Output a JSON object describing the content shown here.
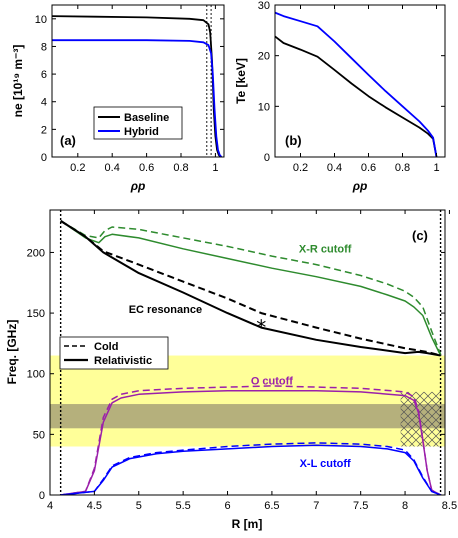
{
  "chart_data": [
    {
      "id": "a",
      "type": "line",
      "panel_label": "(a)",
      "xlabel": "ρp",
      "ylabel": "ne [10¹⁹ m⁻³]",
      "xlim": [
        0.05,
        1.05
      ],
      "ylim": [
        0,
        11
      ],
      "xticks": [
        0.2,
        0.4,
        0.6,
        0.8,
        1
      ],
      "xtick_labels": [
        "0.2",
        "0.4",
        "0.6",
        "0.8",
        "1"
      ],
      "yticks": [
        0,
        2,
        4,
        6,
        8,
        10
      ],
      "ytick_labels": [
        "0",
        "2",
        "4",
        "6",
        "8",
        "10"
      ],
      "legend": [
        "Baseline",
        "Hybrid"
      ],
      "legend_position": "bottom-center",
      "vertical_lines": [
        0.95,
        0.975
      ],
      "series": [
        {
          "name": "Baseline",
          "color": "#000000",
          "x": [
            0.05,
            0.3,
            0.6,
            0.85,
            0.93,
            0.96,
            0.97,
            0.98,
            0.985,
            0.99,
            1.0,
            1.01,
            1.02,
            1.03
          ],
          "y": [
            10.2,
            10.15,
            10.1,
            10.0,
            9.9,
            9.6,
            9.0,
            7.0,
            5.5,
            3.5,
            1.5,
            0.5,
            0.15,
            0.0
          ]
        },
        {
          "name": "Hybrid",
          "color": "#0000ff",
          "x": [
            0.05,
            0.3,
            0.6,
            0.85,
            0.93,
            0.96,
            0.975,
            0.985,
            0.995,
            1.005,
            1.015,
            1.025,
            1.035
          ],
          "y": [
            8.45,
            8.45,
            8.45,
            8.4,
            8.3,
            8.1,
            7.5,
            6.0,
            3.5,
            1.5,
            0.5,
            0.15,
            0.0
          ]
        }
      ]
    },
    {
      "id": "b",
      "type": "line",
      "panel_label": "(b)",
      "xlabel": "ρp",
      "ylabel": "Te [keV]",
      "xlim": [
        0.05,
        1.05
      ],
      "ylim": [
        0,
        30
      ],
      "xticks": [
        0.2,
        0.4,
        0.6,
        0.8,
        1
      ],
      "xtick_labels": [
        "0.2",
        "0.4",
        "0.6",
        "0.8",
        "1"
      ],
      "yticks": [
        0,
        10,
        20,
        30
      ],
      "ytick_labels": [
        "0",
        "10",
        "20",
        "30"
      ],
      "series": [
        {
          "color": "#000000",
          "x": [
            0.05,
            0.1,
            0.2,
            0.3,
            0.4,
            0.5,
            0.6,
            0.7,
            0.8,
            0.9,
            0.95,
            0.98,
            1.0
          ],
          "y": [
            23.8,
            22.5,
            21.2,
            19.8,
            17.2,
            14.5,
            12.0,
            9.8,
            7.8,
            5.8,
            4.6,
            3.6,
            0.0
          ]
        },
        {
          "color": "#0000ff",
          "x": [
            0.05,
            0.1,
            0.2,
            0.3,
            0.4,
            0.5,
            0.6,
            0.7,
            0.8,
            0.9,
            0.95,
            0.98,
            1.0
          ],
          "y": [
            28.5,
            27.8,
            26.8,
            25.8,
            22.8,
            19.5,
            16.2,
            13.0,
            10.0,
            7.0,
            5.2,
            3.8,
            0.0
          ]
        }
      ]
    },
    {
      "id": "c",
      "type": "line",
      "panel_label": "(c)",
      "xlabel": "R [m]",
      "ylabel": "Freq. [GHz]",
      "xlim": [
        4,
        8.45
      ],
      "ylim": [
        0,
        235
      ],
      "xticks": [
        4,
        4.5,
        5,
        5.5,
        6,
        6.5,
        7,
        7.5,
        8,
        8.5
      ],
      "xtick_labels": [
        "4",
        "4.5",
        "5",
        "5.5",
        "6",
        "6.5",
        "7",
        "7.5",
        "8",
        "8.5"
      ],
      "yticks": [
        0,
        50,
        100,
        150,
        200
      ],
      "ytick_labels": [
        "0",
        "50",
        "100",
        "150",
        "200"
      ],
      "legend": [
        "Cold",
        "Relativistic"
      ],
      "legend_position": "middle-left",
      "vertical_lines": [
        4.12,
        8.4
      ],
      "bands": [
        {
          "y0": 40,
          "y1": 115,
          "color": "#ffff99"
        },
        {
          "y0": 55,
          "y1": 75,
          "color": "#b5b07c"
        }
      ],
      "hatch_region": {
        "x0": 7.95,
        "x1": 8.4,
        "y0": 40,
        "y1": 85
      },
      "marker": {
        "x": 6.38,
        "y": 138,
        "symbol": "*"
      },
      "annotations": [
        {
          "text": "X-R cutoff",
          "x": 7.1,
          "y": 200,
          "color": "#2e8b2e"
        },
        {
          "text": "EC resonance",
          "x": 5.3,
          "y": 150,
          "color": "#000000"
        },
        {
          "text": "O cutoff",
          "x": 6.5,
          "y": 91,
          "color": "#9b1faa"
        },
        {
          "text": "X-L cutoff",
          "x": 7.1,
          "y": 23,
          "color": "#0000ff"
        }
      ],
      "series": [
        {
          "name": "X-R cutoff (relativistic)",
          "color": "#2e8b2e",
          "dash": false,
          "x": [
            4.12,
            4.4,
            4.55,
            4.62,
            4.7,
            5.0,
            5.5,
            6.0,
            6.5,
            7.0,
            7.5,
            7.8,
            8.0,
            8.1,
            8.2,
            8.3,
            8.4
          ],
          "y": [
            226,
            212,
            208,
            213,
            215,
            212,
            203,
            195,
            187,
            180,
            172,
            165,
            160,
            155,
            148,
            130,
            115
          ]
        },
        {
          "name": "X-R cutoff (cold)",
          "color": "#2e8b2e",
          "dash": true,
          "x": [
            4.12,
            4.4,
            4.55,
            4.62,
            4.7,
            5.0,
            5.5,
            6.0,
            6.5,
            7.0,
            7.5,
            7.8,
            8.0,
            8.1,
            8.2,
            8.3,
            8.4
          ],
          "y": [
            226,
            214,
            212,
            218,
            221,
            219,
            212,
            205,
            197,
            190,
            181,
            174,
            168,
            163,
            155,
            135,
            116
          ]
        },
        {
          "name": "EC resonance (relativistic)",
          "color": "#000000",
          "dash": false,
          "x": [
            4.12,
            4.4,
            4.6,
            5.0,
            5.5,
            6.0,
            6.38,
            7.0,
            7.5,
            8.0,
            8.15,
            8.25,
            8.4
          ],
          "y": [
            226,
            213,
            200,
            183,
            167,
            150,
            138,
            128,
            122,
            117,
            118,
            117,
            115
          ]
        },
        {
          "name": "EC resonance (cold)",
          "color": "#000000",
          "dash": true,
          "x": [
            4.12,
            4.4,
            4.6,
            5.0,
            5.5,
            6.0,
            6.38,
            7.0,
            7.5,
            8.0,
            8.25,
            8.4
          ],
          "y": [
            226,
            213,
            201,
            190,
            176,
            162,
            150,
            138,
            129,
            121,
            118,
            115
          ]
        },
        {
          "name": "O cutoff (relativistic)",
          "color": "#9b1faa",
          "dash": false,
          "x": [
            4.12,
            4.4,
            4.5,
            4.6,
            4.7,
            4.8,
            5.0,
            5.5,
            6.0,
            6.5,
            7.0,
            7.5,
            8.0,
            8.1,
            8.15,
            8.2,
            8.25,
            8.3,
            8.4
          ],
          "y": [
            0,
            3,
            20,
            60,
            76,
            80,
            83,
            85,
            86,
            86,
            86,
            85,
            82,
            78,
            68,
            45,
            20,
            4,
            0
          ]
        },
        {
          "name": "O cutoff (cold)",
          "color": "#9b1faa",
          "dash": true,
          "x": [
            4.12,
            4.4,
            4.5,
            4.6,
            4.7,
            4.8,
            5.0,
            5.5,
            6.0,
            6.5,
            7.0,
            7.5,
            8.0,
            8.1,
            8.15,
            8.2,
            8.25,
            8.3,
            8.4
          ],
          "y": [
            0,
            3,
            22,
            64,
            79,
            83,
            86,
            88,
            89,
            90,
            89,
            88,
            85,
            81,
            70,
            46,
            20,
            4,
            0
          ]
        },
        {
          "name": "X-L cutoff (relativistic)",
          "color": "#0000ff",
          "dash": false,
          "x": [
            4.12,
            4.5,
            4.6,
            4.7,
            4.9,
            5.2,
            5.5,
            6.0,
            6.5,
            7.0,
            7.5,
            7.8,
            8.0,
            8.1,
            8.2,
            8.3,
            8.4
          ],
          "y": [
            0,
            3,
            12,
            23,
            30,
            34,
            36,
            38,
            40,
            41,
            40,
            38,
            35,
            28,
            14,
            3,
            0
          ]
        },
        {
          "name": "X-L cutoff (cold)",
          "color": "#0000ff",
          "dash": true,
          "x": [
            4.12,
            4.5,
            4.6,
            4.7,
            4.9,
            5.2,
            5.5,
            6.0,
            6.5,
            7.0,
            7.5,
            7.8,
            8.0,
            8.1,
            8.2,
            8.3,
            8.4
          ],
          "y": [
            0,
            3,
            13,
            24,
            31,
            35,
            37,
            40,
            42,
            43,
            42,
            40,
            37,
            29,
            15,
            3,
            0
          ]
        }
      ]
    }
  ]
}
